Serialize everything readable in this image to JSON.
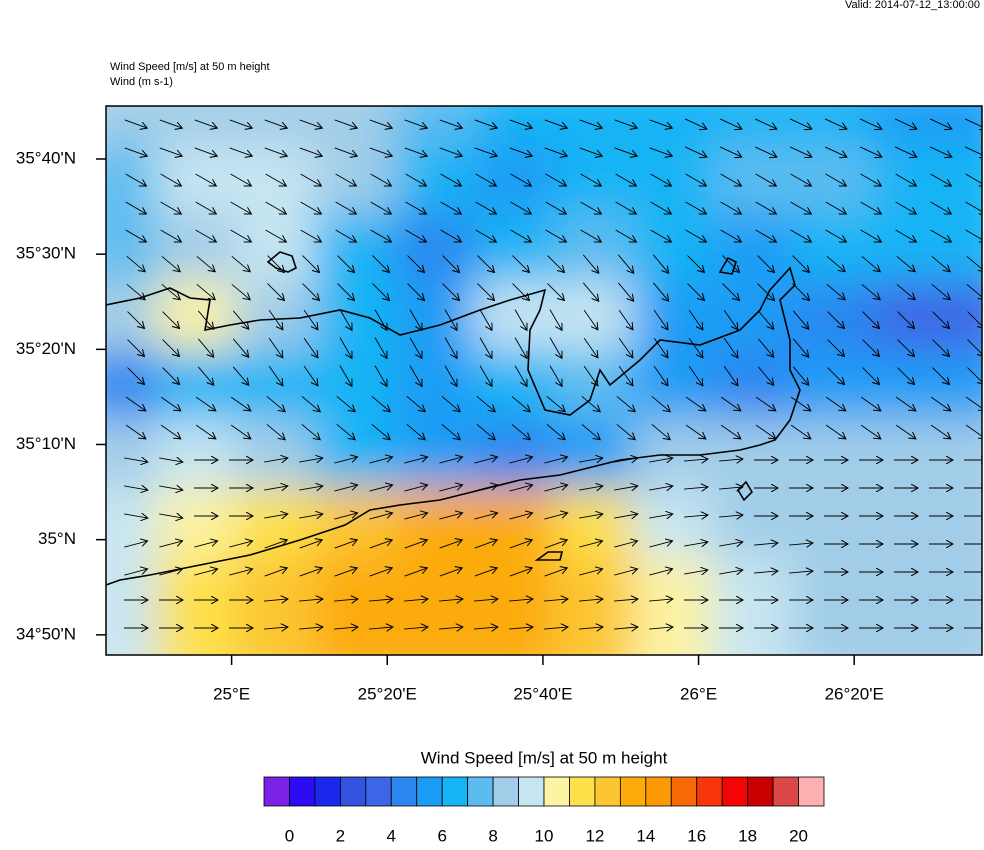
{
  "chart_data": {
    "type": "wind-map",
    "valid_time": "Valid: 2014-07-12_13:00:00",
    "title": "Wind Speed [m/s] at 50 m height",
    "subtitle": "Wind   (m s-1)",
    "lon_range": [
      24.731,
      26.607
    ],
    "lat_range": [
      34.798,
      35.7595
    ],
    "lat_ticks": [
      {
        "value": 35.6667,
        "label": "35°40'N"
      },
      {
        "value": 35.5,
        "label": "35°30'N"
      },
      {
        "value": 35.3333,
        "label": "35°20'N"
      },
      {
        "value": 35.1667,
        "label": "35°10'N"
      },
      {
        "value": 35,
        "label": "35°N"
      },
      {
        "value": 34.8333,
        "label": "34°50'N"
      }
    ],
    "lon_ticks": [
      {
        "value": 25,
        "label": "25°E"
      },
      {
        "value": 25.3333,
        "label": "25°20'E"
      },
      {
        "value": 25.6667,
        "label": "25°40'E"
      },
      {
        "value": 26,
        "label": "26°E"
      },
      {
        "value": 26.3333,
        "label": "26°20'E"
      }
    ],
    "wind_speed": [
      [
        8,
        8,
        8,
        8,
        7,
        6,
        6,
        6,
        6,
        6,
        5
      ],
      [
        7,
        9,
        9,
        8,
        6,
        5,
        6,
        6,
        7,
        7,
        6
      ],
      [
        7,
        8,
        9,
        6,
        4,
        6,
        7,
        6,
        5,
        6,
        6
      ],
      [
        8,
        10,
        8,
        6,
        5,
        9,
        9,
        5,
        5,
        4,
        3
      ],
      [
        4,
        6,
        6,
        6,
        5,
        6,
        7,
        5,
        4,
        5,
        5
      ],
      [
        8,
        9,
        8,
        6,
        5,
        4,
        5,
        8,
        8,
        8,
        8
      ],
      [
        9,
        10,
        11,
        12,
        13,
        13,
        11,
        9,
        8,
        8,
        8
      ],
      [
        9,
        11,
        12,
        13,
        13,
        13,
        12,
        10,
        9,
        8,
        8
      ]
    ],
    "wind_direction_deg": [
      [
        20,
        20,
        20,
        20,
        20,
        20,
        20,
        25,
        25,
        25,
        25
      ],
      [
        30,
        30,
        30,
        30,
        30,
        30,
        30,
        30,
        30,
        30,
        30
      ],
      [
        40,
        40,
        45,
        45,
        45,
        45,
        50,
        45,
        45,
        40,
        40
      ],
      [
        45,
        50,
        55,
        60,
        60,
        60,
        55,
        55,
        50,
        45,
        45
      ],
      [
        35,
        35,
        40,
        40,
        40,
        40,
        40,
        35,
        35,
        35,
        35
      ],
      [
        10,
        0,
        -10,
        -15,
        -15,
        -15,
        -10,
        -5,
        0,
        0,
        0
      ],
      [
        -15,
        -15,
        -20,
        -20,
        -20,
        -20,
        -15,
        -10,
        -5,
        0,
        0
      ],
      [
        0,
        0,
        -5,
        -5,
        -5,
        -5,
        -5,
        0,
        0,
        0,
        0
      ]
    ],
    "colorbar": {
      "title": "Wind Speed [m/s] at 50 m height",
      "range": [
        -1,
        21
      ],
      "ticks": [
        0,
        2,
        4,
        6,
        8,
        10,
        12,
        14,
        16,
        18,
        20
      ],
      "colors": [
        "#7c22e6",
        "#2b0cf5",
        "#1a28ec",
        "#3452e0",
        "#3c66e6",
        "#2b86f0",
        "#1a9cf5",
        "#14b4f5",
        "#5cbcf0",
        "#a1cde8",
        "#c6e5f2",
        "#fcf3a3",
        "#fde14a",
        "#fcc632",
        "#fcab08",
        "#fc9a05",
        "#f86a05",
        "#f8360a",
        "#f20505",
        "#c80000",
        "#dc4848",
        "#ffb0b0"
      ]
    }
  }
}
